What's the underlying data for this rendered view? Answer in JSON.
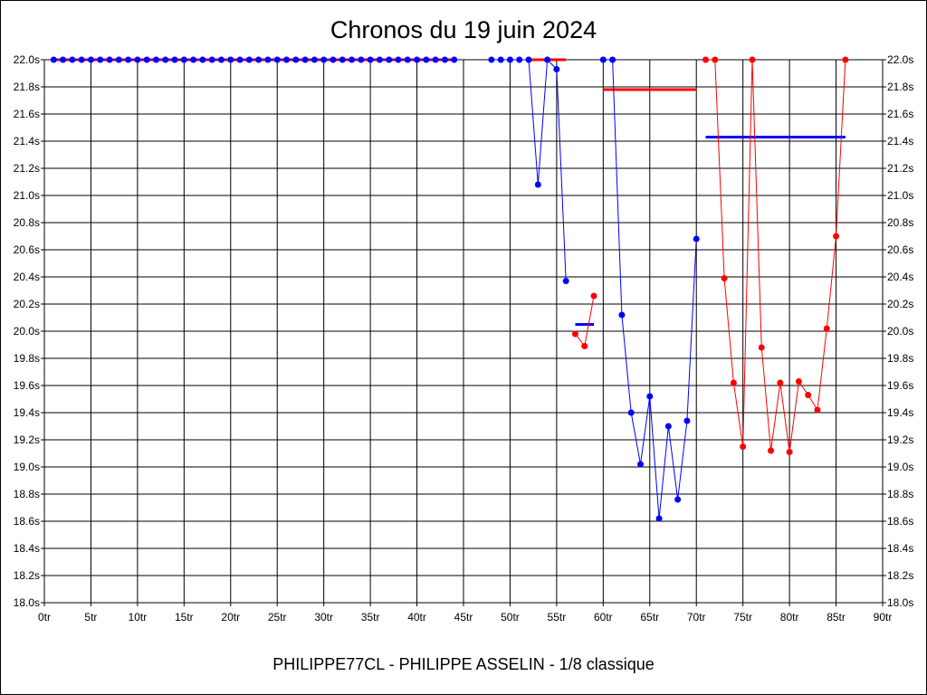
{
  "chart_data": {
    "type": "line",
    "title": "Chronos du 19 juin 2024",
    "footer": "PHILIPPE77CL - PHILIPPE ASSELIN - 1/8 classique",
    "xlim": [
      0,
      90
    ],
    "ylim": [
      18.0,
      22.0
    ],
    "x_ticks": [
      "0tr",
      "5tr",
      "10tr",
      "15tr",
      "20tr",
      "25tr",
      "30tr",
      "35tr",
      "40tr",
      "45tr",
      "50tr",
      "55tr",
      "60tr",
      "65tr",
      "70tr",
      "75tr",
      "80tr",
      "85tr",
      "90tr"
    ],
    "y_ticks": [
      "18.0s",
      "18.2s",
      "18.4s",
      "18.6s",
      "18.8s",
      "19.0s",
      "19.2s",
      "19.4s",
      "19.6s",
      "19.8s",
      "20.0s",
      "20.2s",
      "20.4s",
      "20.6s",
      "20.8s",
      "21.0s",
      "21.2s",
      "21.4s",
      "21.6s",
      "21.8s",
      "22.0s"
    ],
    "grid": true,
    "colors": {
      "blue": "#0000ff",
      "red": "#ff0000"
    },
    "series": [
      {
        "name": "segment-1",
        "color": "blue",
        "x": [
          1,
          2,
          3,
          4,
          5,
          6,
          7,
          8,
          9,
          10,
          11,
          12,
          13,
          14,
          15,
          16,
          17,
          18,
          19,
          20,
          21,
          22,
          23,
          24,
          25,
          26,
          27,
          28,
          29,
          30,
          31,
          32,
          33,
          34,
          35,
          36,
          37,
          38,
          39,
          40,
          41,
          42,
          43,
          44
        ],
        "y": [
          22,
          22,
          22,
          22,
          22,
          22,
          22,
          22,
          22,
          22,
          22,
          22,
          22,
          22,
          22,
          22,
          22,
          22,
          22,
          22,
          22,
          22,
          22,
          22,
          22,
          22,
          22,
          22,
          22,
          22,
          22,
          22,
          22,
          22,
          22,
          22,
          22,
          22,
          22,
          22,
          22,
          22,
          22,
          22
        ]
      },
      {
        "name": "segment-2",
        "color": "blue",
        "x": [
          48,
          49,
          50,
          51,
          52,
          53,
          54,
          55,
          56
        ],
        "y": [
          22.0,
          22.0,
          22.0,
          22.0,
          22.0,
          21.08,
          22.0,
          21.93,
          20.37
        ]
      },
      {
        "name": "segment-3",
        "color": "red",
        "x": [
          57,
          58,
          59
        ],
        "y": [
          19.98,
          19.89,
          20.26
        ]
      },
      {
        "name": "segment-4",
        "color": "blue",
        "x": [
          60,
          61,
          62,
          63,
          64,
          65,
          66,
          67,
          68,
          69,
          70
        ],
        "y": [
          22.0,
          22.0,
          20.12,
          19.4,
          19.02,
          19.52,
          18.62,
          19.3,
          18.76,
          19.34,
          20.68
        ]
      },
      {
        "name": "segment-5",
        "color": "red",
        "x": [
          71,
          72,
          73,
          74,
          75,
          76,
          77,
          78,
          79,
          80,
          81,
          82,
          83,
          84,
          85,
          86
        ],
        "y": [
          22.0,
          22.0,
          20.39,
          19.62,
          19.15,
          22.0,
          19.88,
          19.12,
          19.62,
          19.11,
          19.63,
          19.53,
          19.42,
          20.02,
          20.7,
          22.0
        ]
      }
    ],
    "averages": [
      {
        "color": "red",
        "x": [
          1,
          44
        ],
        "y": 22.0
      },
      {
        "color": "red",
        "x": [
          52,
          56
        ],
        "y": 22.0
      },
      {
        "color": "blue",
        "x": [
          57,
          59
        ],
        "y": 20.05
      },
      {
        "color": "red",
        "x": [
          60,
          70
        ],
        "y": 21.78
      },
      {
        "color": "blue",
        "x": [
          71,
          86
        ],
        "y": 21.43
      }
    ]
  }
}
